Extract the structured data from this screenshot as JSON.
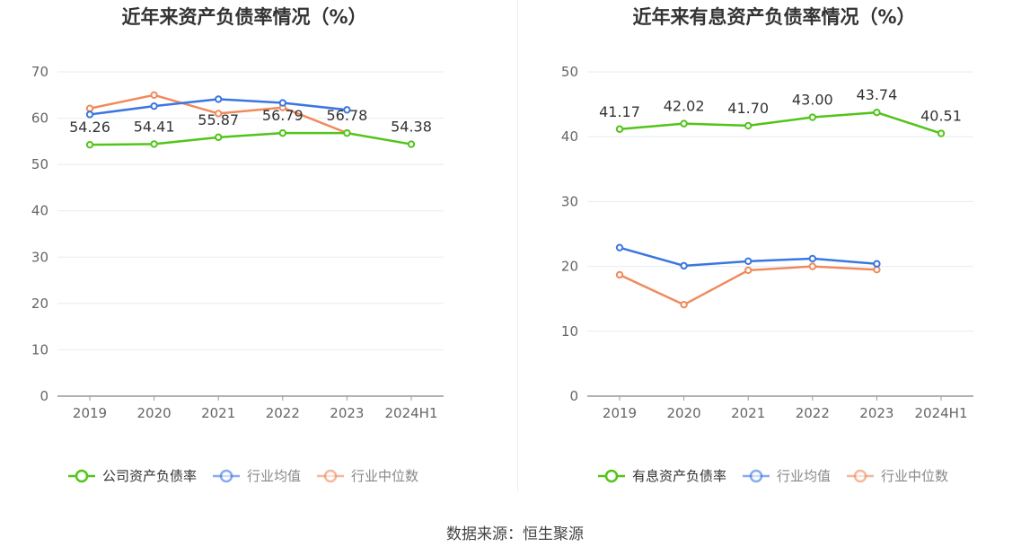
{
  "source_text": "数据来源：恒生聚源",
  "colors": {
    "company": "#52c41a",
    "avg": "#3a76e0",
    "median": "#f08a5d",
    "axis": "#999999",
    "grid": "#e8ebf3",
    "tick": "#666666",
    "title": "#333333",
    "label": "#333333"
  },
  "chart_data": [
    {
      "type": "line",
      "title": "近年来资产负债率情况（%）",
      "categories": [
        "2019",
        "2020",
        "2021",
        "2022",
        "2023",
        "2024H1"
      ],
      "ylim": [
        0,
        70
      ],
      "yticks": [
        0,
        10,
        20,
        30,
        40,
        50,
        60,
        70
      ],
      "grid": true,
      "legend_position": "bottom",
      "series": [
        {
          "name": "公司资产负债率",
          "color_key": "company",
          "values": [
            54.26,
            54.41,
            55.87,
            56.79,
            56.78,
            54.38
          ],
          "labels": [
            "54.26",
            "54.41",
            "55.87",
            "56.79",
            "56.78",
            "54.38"
          ]
        },
        {
          "name": "行业均值",
          "color_key": "avg",
          "values": [
            60.8,
            62.6,
            64.1,
            63.3,
            61.8,
            null
          ]
        },
        {
          "name": "行业中位数",
          "color_key": "median",
          "values": [
            62.1,
            65.0,
            61.0,
            62.3,
            56.8,
            null
          ]
        }
      ]
    },
    {
      "type": "line",
      "title": "近年来有息资产负债率情况（%）",
      "categories": [
        "2019",
        "2020",
        "2021",
        "2022",
        "2023",
        "2024H1"
      ],
      "ylim": [
        0,
        50
      ],
      "yticks": [
        0,
        10,
        20,
        30,
        40,
        50
      ],
      "grid": true,
      "legend_position": "bottom",
      "series": [
        {
          "name": "有息资产负债率",
          "color_key": "company",
          "values": [
            41.17,
            42.02,
            41.7,
            43.0,
            43.74,
            40.51
          ],
          "labels": [
            "41.17",
            "42.02",
            "41.70",
            "43.00",
            "43.74",
            "40.51"
          ]
        },
        {
          "name": "行业均值",
          "color_key": "avg",
          "values": [
            22.9,
            20.1,
            20.8,
            21.2,
            20.4,
            null
          ]
        },
        {
          "name": "行业中位数",
          "color_key": "median",
          "values": [
            18.7,
            14.1,
            19.4,
            20.0,
            19.5,
            null
          ]
        }
      ]
    }
  ]
}
